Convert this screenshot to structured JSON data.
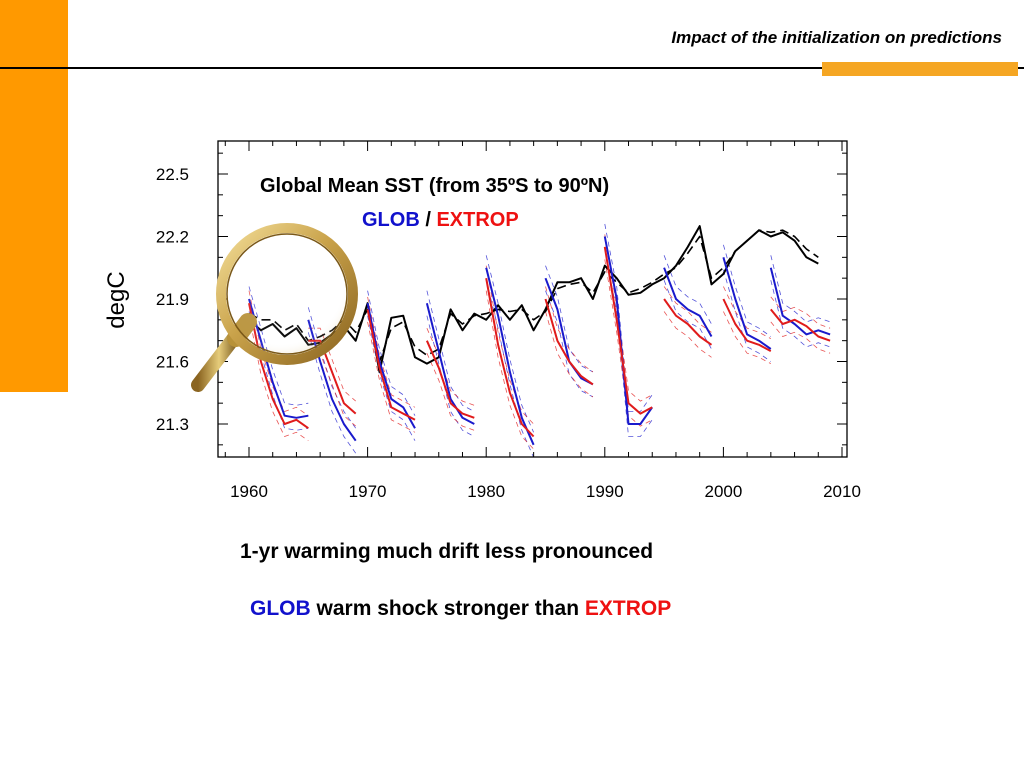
{
  "header": {
    "title": "Impact of the initialization on predictions"
  },
  "colors": {
    "accent": "#ff9900",
    "glob": "#1a1acc",
    "extrop": "#e01b1b",
    "observed": "#000000"
  },
  "decoration": {
    "magnifier": "magnifying-glass-icon"
  },
  "notes": {
    "line1": "1-yr warming much drift less pronounced",
    "line2": {
      "a": "GLOB",
      "b": " warm shock stronger than ",
      "c": "EXTROP"
    }
  },
  "chart_data": {
    "type": "line",
    "title": "Global Mean SST (from 35ºS to 90ºN)",
    "subtitle": {
      "glob": "GLOB",
      "sep": " / ",
      "extrop": "EXTROP"
    },
    "ylabel": "degC",
    "xlabel": "",
    "xlim": [
      1957,
      2010
    ],
    "ylim": [
      21.15,
      22.7
    ],
    "xticks": [
      1960,
      1970,
      1980,
      1990,
      2000,
      2010
    ],
    "yticks": [
      21.3,
      21.6,
      21.9,
      22.2,
      22.5
    ],
    "grid": false,
    "series": [
      {
        "style": "observed-solid",
        "x": [
          1960,
          1961,
          1962,
          1963,
          1964,
          1965,
          1966,
          1967,
          1968,
          1969,
          1970,
          1971,
          1972,
          1973,
          1974,
          1975,
          1976,
          1977,
          1978,
          1979,
          1980,
          1981,
          1982,
          1983,
          1984,
          1985,
          1986,
          1987,
          1988,
          1989,
          1990,
          1991,
          1992,
          1993,
          1994,
          1995,
          1996,
          1997,
          1998,
          1999,
          2000,
          2001,
          2002,
          2003,
          2004,
          2005,
          2006,
          2007,
          2008
        ],
        "values": [
          21.8,
          21.75,
          21.78,
          21.72,
          21.76,
          21.68,
          21.69,
          21.73,
          21.77,
          21.7,
          21.88,
          21.55,
          21.81,
          21.82,
          21.62,
          21.59,
          21.62,
          21.85,
          21.75,
          21.83,
          21.8,
          21.87,
          21.8,
          21.87,
          21.75,
          21.85,
          21.98,
          21.98,
          22.0,
          21.9,
          22.06,
          22.0,
          21.92,
          21.93,
          21.97,
          22.0,
          22.06,
          22.15,
          22.25,
          21.97,
          22.02,
          22.13,
          22.18,
          22.23,
          22.2,
          22.22,
          22.18,
          22.1,
          22.07
        ]
      },
      {
        "style": "observed-dashed",
        "x": [
          1960,
          1961,
          1962,
          1963,
          1964,
          1965,
          1966,
          1967,
          1968,
          1969,
          1970,
          1971,
          1972,
          1973,
          1974,
          1975,
          1976,
          1977,
          1978,
          1979,
          1980,
          1981,
          1982,
          1983,
          1984,
          1985,
          1986,
          1987,
          1988,
          1989,
          1990,
          1991,
          1992,
          1993,
          1994,
          1995,
          1996,
          1997,
          1998,
          1999,
          2000,
          2001,
          2002,
          2003,
          2004,
          2005,
          2006,
          2007,
          2008
        ],
        "values": [
          21.83,
          21.8,
          21.8,
          21.75,
          21.78,
          21.7,
          21.72,
          21.75,
          21.8,
          21.74,
          21.85,
          21.6,
          21.76,
          21.79,
          21.67,
          21.63,
          21.66,
          21.83,
          21.78,
          21.82,
          21.83,
          21.85,
          21.84,
          21.85,
          21.8,
          21.84,
          21.95,
          21.97,
          21.98,
          21.93,
          22.03,
          21.98,
          21.93,
          21.95,
          21.98,
          22.02,
          22.05,
          22.12,
          22.2,
          22.0,
          22.05,
          22.13,
          22.18,
          22.23,
          22.22,
          22.23,
          22.2,
          22.14,
          22.1
        ]
      },
      {
        "style": "glob",
        "x": [
          1960,
          1961,
          1962,
          1963,
          1964,
          1965
        ],
        "values": [
          21.9,
          21.7,
          21.5,
          21.34,
          21.33,
          21.34
        ]
      },
      {
        "style": "glob",
        "x": [
          1965,
          1966,
          1967,
          1968,
          1969
        ],
        "values": [
          21.8,
          21.6,
          21.42,
          21.3,
          21.22
        ]
      },
      {
        "style": "glob",
        "x": [
          1970,
          1971,
          1972,
          1973,
          1974
        ],
        "values": [
          21.88,
          21.6,
          21.42,
          21.38,
          21.28
        ]
      },
      {
        "style": "glob",
        "x": [
          1975,
          1976,
          1977,
          1978,
          1979
        ],
        "values": [
          21.88,
          21.65,
          21.42,
          21.33,
          21.3
        ]
      },
      {
        "style": "glob",
        "x": [
          1980,
          1981,
          1982,
          1983,
          1984
        ],
        "values": [
          22.05,
          21.82,
          21.55,
          21.33,
          21.2
        ]
      },
      {
        "style": "glob",
        "x": [
          1985,
          1986,
          1987,
          1988,
          1989
        ],
        "values": [
          22.0,
          21.85,
          21.6,
          21.52,
          21.49
        ]
      },
      {
        "style": "glob",
        "x": [
          1990,
          1991,
          1992,
          1993,
          1994
        ],
        "values": [
          22.2,
          21.9,
          21.3,
          21.3,
          21.38
        ]
      },
      {
        "style": "glob",
        "x": [
          1995,
          1996,
          1997,
          1998,
          1999
        ],
        "values": [
          22.05,
          21.9,
          21.85,
          21.82,
          21.72
        ]
      },
      {
        "style": "glob",
        "x": [
          2000,
          2001,
          2002,
          2003,
          2004
        ],
        "values": [
          22.1,
          21.9,
          21.73,
          21.7,
          21.66
        ]
      },
      {
        "style": "glob",
        "x": [
          2004,
          2005,
          2006,
          2007,
          2008,
          2009
        ],
        "values": [
          22.05,
          21.82,
          21.78,
          21.73,
          21.75,
          21.73
        ]
      },
      {
        "style": "extrop",
        "x": [
          1960,
          1961,
          1962,
          1963,
          1964,
          1965
        ],
        "values": [
          21.88,
          21.6,
          21.42,
          21.3,
          21.32,
          21.28
        ]
      },
      {
        "style": "extrop",
        "x": [
          1965,
          1966,
          1967,
          1968,
          1969
        ],
        "values": [
          21.7,
          21.7,
          21.55,
          21.4,
          21.35
        ]
      },
      {
        "style": "extrop",
        "x": [
          1970,
          1971,
          1972,
          1973,
          1974
        ],
        "values": [
          21.85,
          21.57,
          21.38,
          21.35,
          21.32
        ]
      },
      {
        "style": "extrop",
        "x": [
          1975,
          1976,
          1977,
          1978,
          1979
        ],
        "values": [
          21.7,
          21.57,
          21.4,
          21.35,
          21.33
        ]
      },
      {
        "style": "extrop",
        "x": [
          1980,
          1981,
          1982,
          1983,
          1984
        ],
        "values": [
          22.0,
          21.68,
          21.45,
          21.3,
          21.24
        ]
      },
      {
        "style": "extrop",
        "x": [
          1985,
          1986,
          1987,
          1988,
          1989
        ],
        "values": [
          21.9,
          21.7,
          21.6,
          21.53,
          21.49
        ]
      },
      {
        "style": "extrop",
        "x": [
          1990,
          1991,
          1992,
          1993,
          1994
        ],
        "values": [
          22.15,
          21.8,
          21.4,
          21.35,
          21.38
        ]
      },
      {
        "style": "extrop",
        "x": [
          1995,
          1996,
          1997,
          1998,
          1999
        ],
        "values": [
          21.9,
          21.82,
          21.78,
          21.72,
          21.68
        ]
      },
      {
        "style": "extrop",
        "x": [
          2000,
          2001,
          2002,
          2003,
          2004
        ],
        "values": [
          21.9,
          21.78,
          21.7,
          21.68,
          21.65
        ]
      },
      {
        "style": "extrop",
        "x": [
          2004,
          2005,
          2006,
          2007,
          2008,
          2009
        ],
        "values": [
          21.85,
          21.78,
          21.8,
          21.77,
          21.72,
          21.7
        ]
      }
    ]
  }
}
